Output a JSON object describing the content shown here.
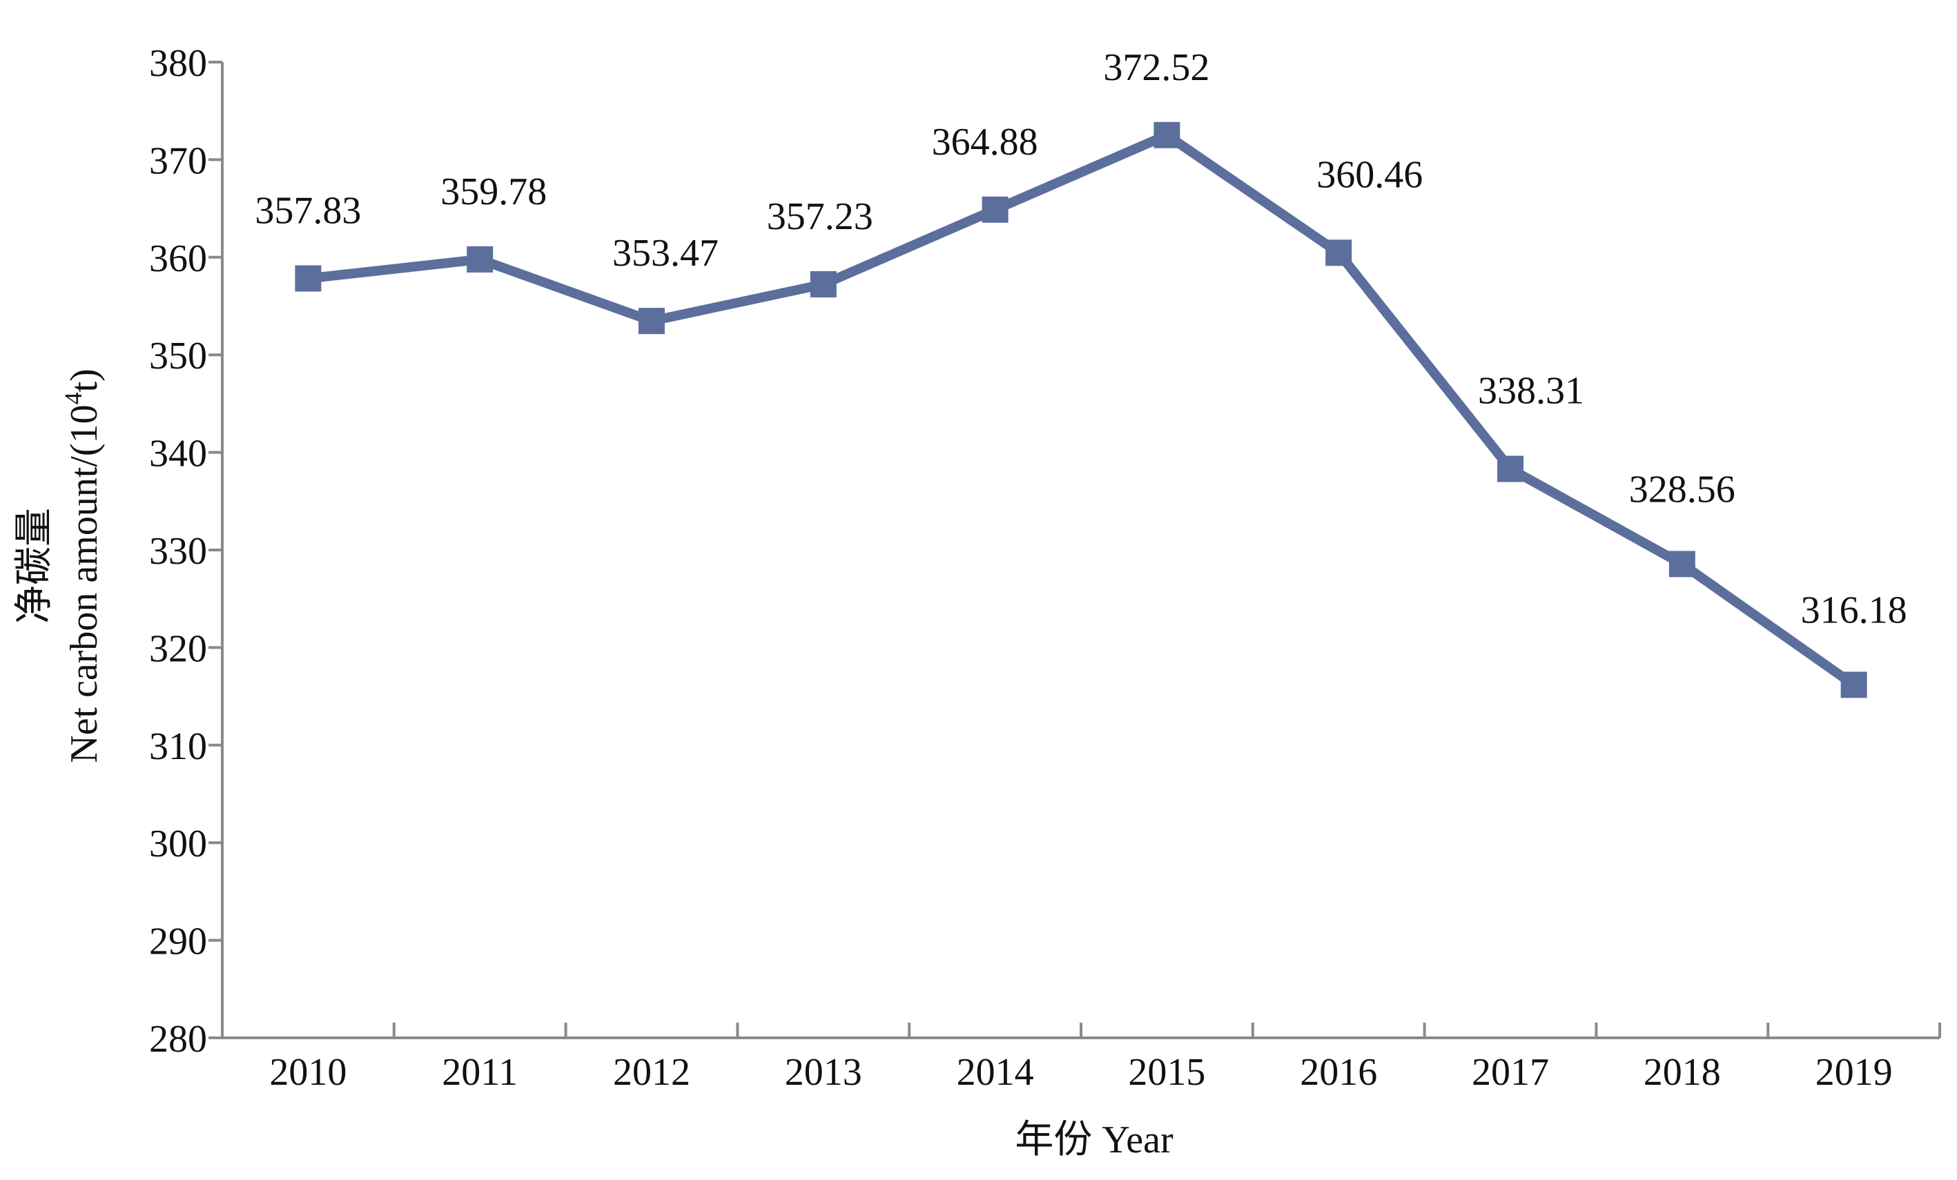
{
  "chart_data": {
    "type": "line",
    "categories": [
      "2010",
      "2011",
      "2012",
      "2013",
      "2014",
      "2015",
      "2016",
      "2017",
      "2018",
      "2019"
    ],
    "series": [
      {
        "values": [
          357.83,
          359.78,
          353.47,
          357.23,
          364.88,
          372.52,
          360.46,
          338.31,
          328.56,
          316.18
        ],
        "labels": [
          "357.83",
          "359.78",
          "353.47",
          "357.23",
          "364.88",
          "372.52",
          "360.46",
          "338.31",
          "328.56",
          "316.18"
        ],
        "color": "#5b6e9c",
        "marker": "square"
      }
    ],
    "xlabel": "年份 Year",
    "ylabel_cn": "净碳量",
    "ylabel_en": "Net carbon amount/(10",
    "ylabel_sup": "4",
    "ylabel_end": "t)",
    "ylim": [
      280,
      380
    ],
    "yticks": [
      "280",
      "290",
      "300",
      "310",
      "320",
      "330",
      "340",
      "350",
      "360",
      "370",
      "380"
    ],
    "grid": false,
    "legend": "none",
    "axis_color": "#8a8a8a"
  }
}
